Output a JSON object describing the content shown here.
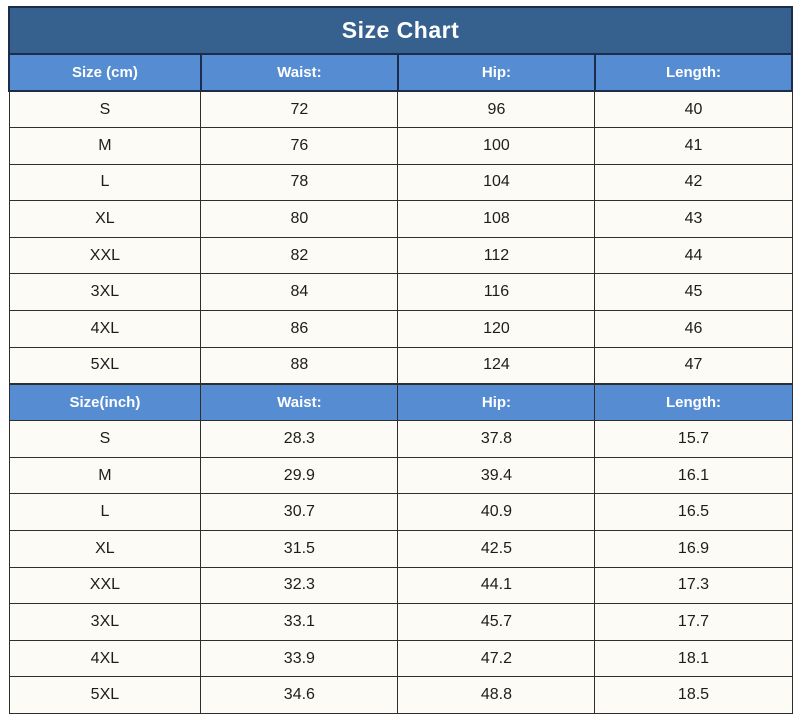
{
  "title": "Size Chart",
  "colors": {
    "title_bg": "#36618F",
    "header_bg": "#568CD2",
    "border_dark": "#1E2C4C",
    "border_light": "#2E2E2E",
    "cell_bg": "#FCFBF5",
    "page_bg": "#FFFFFF",
    "header_text": "#FFFFFF",
    "cell_text": "#1D1D1D"
  },
  "chart_data": {
    "type": "table",
    "title": "Size Chart",
    "layout": {
      "columns": 4,
      "column_width_percents": [
        24.5,
        25.17,
        25.17,
        25.16
      ],
      "sections": 2
    },
    "sections": [
      {
        "unit": "cm",
        "header": [
          "Size (cm)",
          "Waist:",
          "Hip:",
          "Length:"
        ],
        "rows": [
          [
            "S",
            "72",
            "96",
            "40"
          ],
          [
            "M",
            "76",
            "100",
            "41"
          ],
          [
            "L",
            "78",
            "104",
            "42"
          ],
          [
            "XL",
            "80",
            "108",
            "43"
          ],
          [
            "XXL",
            "82",
            "112",
            "44"
          ],
          [
            "3XL",
            "84",
            "116",
            "45"
          ],
          [
            "4XL",
            "86",
            "120",
            "46"
          ],
          [
            "5XL",
            "88",
            "124",
            "47"
          ]
        ]
      },
      {
        "unit": "inch",
        "header": [
          "Size(inch)",
          "Waist:",
          "Hip:",
          "Length:"
        ],
        "rows": [
          [
            "S",
            "28.3",
            "37.8",
            "15.7"
          ],
          [
            "M",
            "29.9",
            "39.4",
            "16.1"
          ],
          [
            "L",
            "30.7",
            "40.9",
            "16.5"
          ],
          [
            "XL",
            "31.5",
            "42.5",
            "16.9"
          ],
          [
            "XXL",
            "32.3",
            "44.1",
            "17.3"
          ],
          [
            "3XL",
            "33.1",
            "45.7",
            "17.7"
          ],
          [
            "4XL",
            "33.9",
            "47.2",
            "18.1"
          ],
          [
            "5XL",
            "34.6",
            "48.8",
            "18.5"
          ]
        ]
      }
    ]
  }
}
